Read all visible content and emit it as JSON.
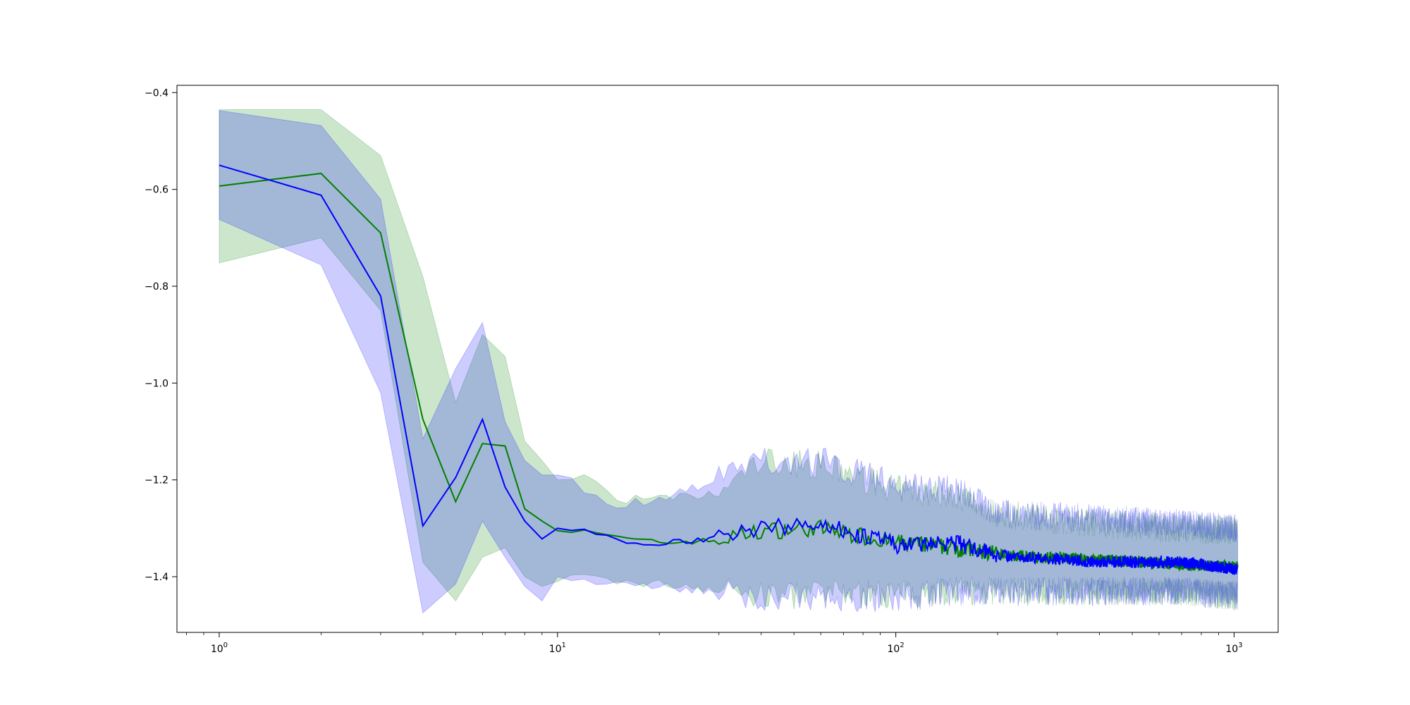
{
  "chart_data": {
    "type": "line",
    "title": "",
    "xlabel": "",
    "ylabel": "",
    "xscale": "log",
    "xlim": [
      0.75,
      1350
    ],
    "ylim": [
      -1.515,
      -0.385
    ],
    "grid": false,
    "legend": "none",
    "x_ticks": [
      {
        "value": 1,
        "base": "10",
        "exp": "0"
      },
      {
        "value": 10,
        "base": "10",
        "exp": "1"
      },
      {
        "value": 100,
        "base": "10",
        "exp": "2"
      },
      {
        "value": 1000,
        "base": "10",
        "exp": "3"
      }
    ],
    "y_ticks": [
      {
        "value": -0.4,
        "label": "−0.4"
      },
      {
        "value": -0.6,
        "label": "−0.6"
      },
      {
        "value": -0.8,
        "label": "−0.8"
      },
      {
        "value": -1.0,
        "label": "−1.0"
      },
      {
        "value": -1.2,
        "label": "−1.2"
      },
      {
        "value": -1.4,
        "label": "−1.4"
      }
    ],
    "series": [
      {
        "color": "#008000",
        "band_color": "#008000",
        "band_opacity": 0.2,
        "points": [
          [
            1,
            -0.593,
            -0.752,
            -0.435
          ],
          [
            2,
            -0.567,
            -0.7,
            -0.435
          ],
          [
            3,
            -0.69,
            -0.85,
            -0.53
          ],
          [
            4,
            -1.075,
            -1.37,
            -0.78
          ],
          [
            5,
            -1.245,
            -1.45,
            -1.04
          ],
          [
            6,
            -1.125,
            -1.36,
            -0.9
          ],
          [
            7,
            -1.13,
            -1.34,
            -0.945
          ],
          [
            8,
            -1.26,
            -1.4,
            -1.12
          ],
          [
            9,
            -1.285,
            -1.42,
            -1.16
          ],
          [
            10,
            -1.305,
            -1.41,
            -1.2
          ],
          [
            12,
            -1.3,
            -1.4,
            -1.19
          ],
          [
            15,
            -1.32,
            -1.41,
            -1.24
          ],
          [
            20,
            -1.33,
            -1.415,
            -1.24
          ],
          [
            30,
            -1.325,
            -1.425,
            -1.23
          ],
          [
            40,
            -1.305,
            -1.44,
            -1.16
          ],
          [
            60,
            -1.3,
            -1.435,
            -1.17
          ],
          [
            100,
            -1.33,
            -1.435,
            -1.22
          ],
          [
            150,
            -1.34,
            -1.43,
            -1.23
          ],
          [
            200,
            -1.355,
            -1.43,
            -1.27
          ],
          [
            400,
            -1.365,
            -1.43,
            -1.29
          ],
          [
            700,
            -1.375,
            -1.43,
            -1.3
          ],
          [
            1024,
            -1.38,
            -1.44,
            -1.305
          ]
        ]
      },
      {
        "color": "#0000ff",
        "band_color": "#0000ff",
        "band_opacity": 0.2,
        "points": [
          [
            1,
            -0.55,
            -0.662,
            -0.437
          ],
          [
            2,
            -0.612,
            -0.756,
            -0.468
          ],
          [
            3,
            -0.82,
            -1.02,
            -0.62
          ],
          [
            4,
            -1.295,
            -1.475,
            -1.115
          ],
          [
            5,
            -1.195,
            -1.415,
            -0.97
          ],
          [
            6,
            -1.075,
            -1.285,
            -0.875
          ],
          [
            7,
            -1.215,
            -1.36,
            -1.08
          ],
          [
            8,
            -1.285,
            -1.42,
            -1.16
          ],
          [
            9,
            -1.322,
            -1.45,
            -1.19
          ],
          [
            10,
            -1.3,
            -1.4,
            -1.19
          ],
          [
            12,
            -1.305,
            -1.41,
            -1.22
          ],
          [
            15,
            -1.325,
            -1.41,
            -1.25
          ],
          [
            20,
            -1.33,
            -1.42,
            -1.24
          ],
          [
            30,
            -1.32,
            -1.43,
            -1.2
          ],
          [
            40,
            -1.3,
            -1.44,
            -1.16
          ],
          [
            60,
            -1.29,
            -1.44,
            -1.16
          ],
          [
            100,
            -1.335,
            -1.445,
            -1.21
          ],
          [
            150,
            -1.33,
            -1.43,
            -1.22
          ],
          [
            200,
            -1.355,
            -1.43,
            -1.27
          ],
          [
            400,
            -1.37,
            -1.43,
            -1.28
          ],
          [
            700,
            -1.37,
            -1.43,
            -1.29
          ],
          [
            1024,
            -1.385,
            -1.44,
            -1.3
          ]
        ]
      }
    ]
  }
}
